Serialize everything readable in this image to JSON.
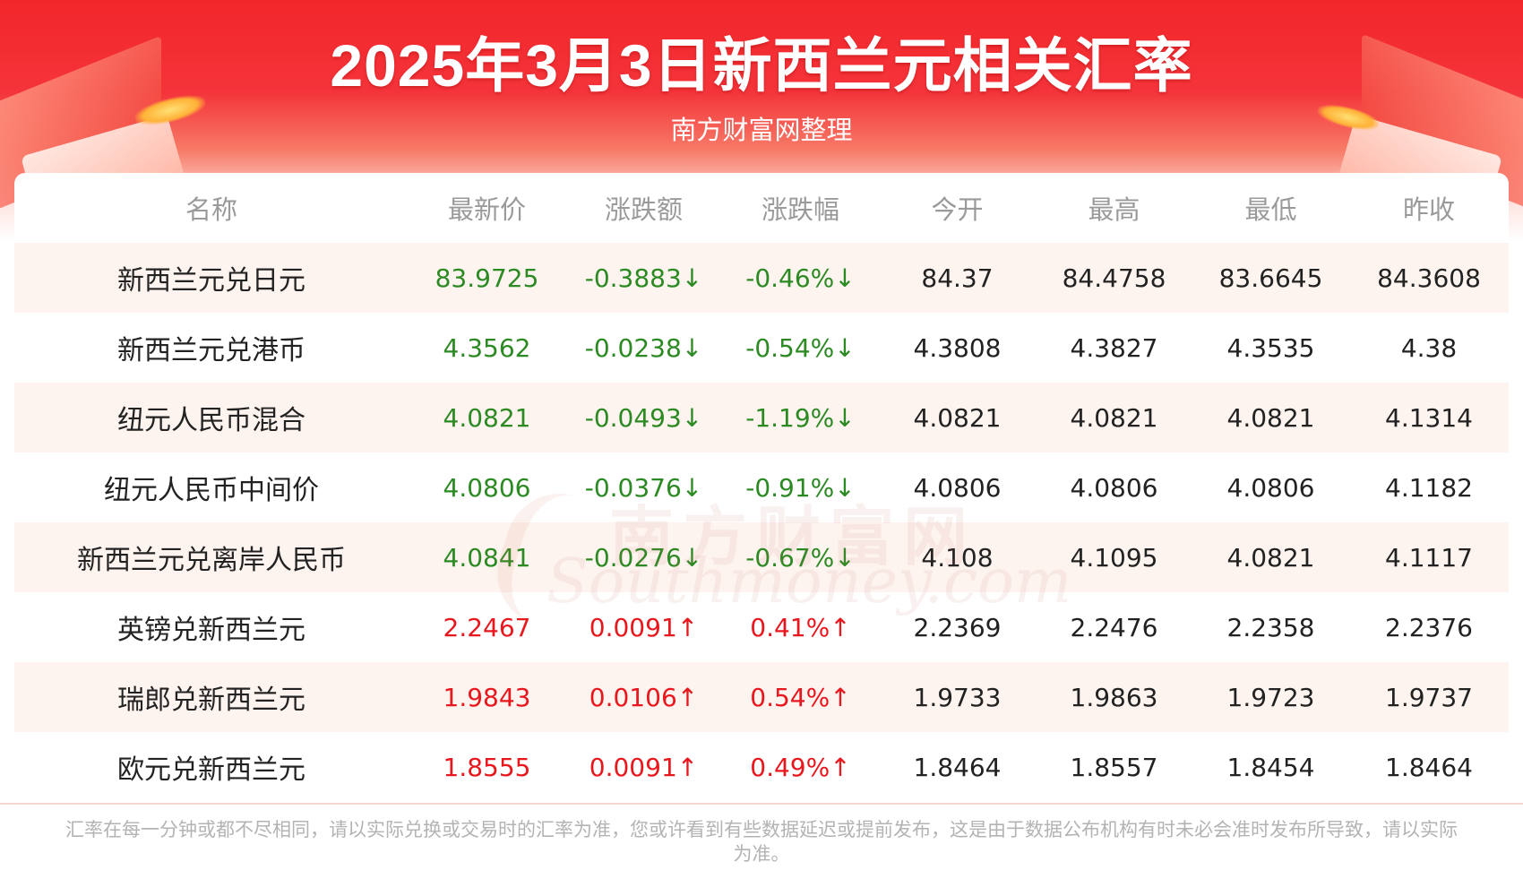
{
  "header": {
    "title": "2025年3月3日新西兰元相关汇率",
    "subtitle": "南方财富网整理"
  },
  "colors": {
    "up": "#e8171d",
    "down": "#2c8a23",
    "header_red": "#f2262a",
    "stripe": "#fdf3ef"
  },
  "table": {
    "columns": [
      "名称",
      "最新价",
      "涨跌额",
      "涨跌幅",
      "今开",
      "最高",
      "最低",
      "昨收"
    ],
    "rows": [
      {
        "name": "新西兰元兑日元",
        "latest": "83.9725",
        "change": "-0.3883↓",
        "change_pct": "-0.46%↓",
        "open": "84.37",
        "high": "84.4758",
        "low": "83.6645",
        "prev_close": "84.3608",
        "trend": "down"
      },
      {
        "name": "新西兰元兑港币",
        "latest": "4.3562",
        "change": "-0.0238↓",
        "change_pct": "-0.54%↓",
        "open": "4.3808",
        "high": "4.3827",
        "low": "4.3535",
        "prev_close": "4.38",
        "trend": "down"
      },
      {
        "name": "纽元人民币混合",
        "latest": "4.0821",
        "change": "-0.0493↓",
        "change_pct": "-1.19%↓",
        "open": "4.0821",
        "high": "4.0821",
        "low": "4.0821",
        "prev_close": "4.1314",
        "trend": "down"
      },
      {
        "name": "纽元人民币中间价",
        "latest": "4.0806",
        "change": "-0.0376↓",
        "change_pct": "-0.91%↓",
        "open": "4.0806",
        "high": "4.0806",
        "low": "4.0806",
        "prev_close": "4.1182",
        "trend": "down"
      },
      {
        "name": "新西兰元兑离岸人民币",
        "latest": "4.0841",
        "change": "-0.0276↓",
        "change_pct": "-0.67%↓",
        "open": "4.108",
        "high": "4.1095",
        "low": "4.0821",
        "prev_close": "4.1117",
        "trend": "down"
      },
      {
        "name": "英镑兑新西兰元",
        "latest": "2.2467",
        "change": "0.0091↑",
        "change_pct": "0.41%↑",
        "open": "2.2369",
        "high": "2.2476",
        "low": "2.2358",
        "prev_close": "2.2376",
        "trend": "up"
      },
      {
        "name": "瑞郎兑新西兰元",
        "latest": "1.9843",
        "change": "0.0106↑",
        "change_pct": "0.54%↑",
        "open": "1.9733",
        "high": "1.9863",
        "low": "1.9723",
        "prev_close": "1.9737",
        "trend": "up"
      },
      {
        "name": "欧元兑新西兰元",
        "latest": "1.8555",
        "change": "0.0091↑",
        "change_pct": "0.49%↑",
        "open": "1.8464",
        "high": "1.8557",
        "low": "1.8454",
        "prev_close": "1.8464",
        "trend": "up"
      }
    ]
  },
  "watermark": {
    "cn": "南方财富网",
    "en": "Southmoney.com"
  },
  "footer": {
    "note": "汇率在每一分钟或都不尽相同，请以实际兑换或交易时的汇率为准，您或许看到有些数据延迟或提前发布，这是由于数据公布机构有时未必会准时发布所导致，请以实际为准。"
  }
}
